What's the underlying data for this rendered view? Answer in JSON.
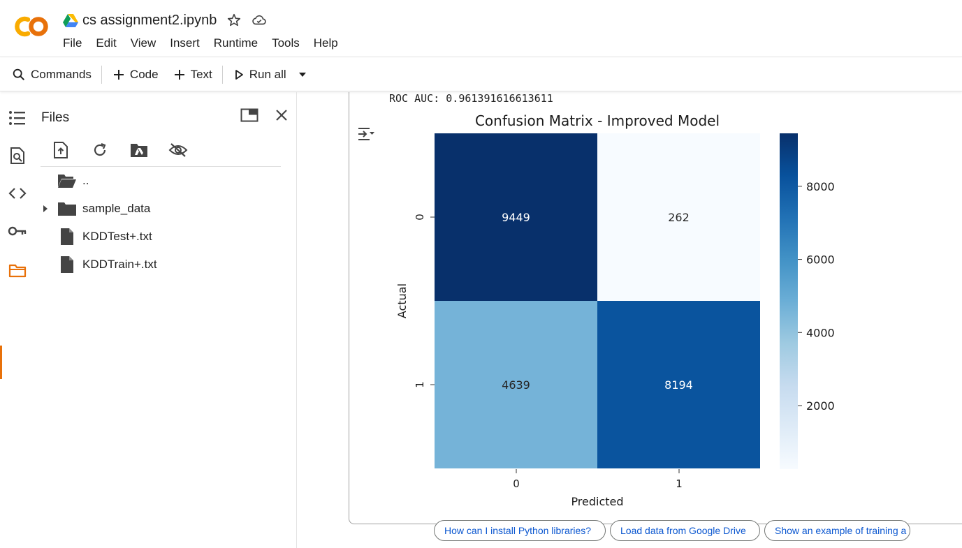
{
  "header": {
    "notebook_title": "cs assignment2.ipynb",
    "menu": [
      "File",
      "Edit",
      "View",
      "Insert",
      "Runtime",
      "Tools",
      "Help"
    ]
  },
  "toolbar": {
    "commands_label": "Commands",
    "code_label": "Code",
    "text_label": "Text",
    "run_all_label": "Run all"
  },
  "files_panel": {
    "title": "Files",
    "items": [
      {
        "name": "..",
        "type": "folder-open"
      },
      {
        "name": "sample_data",
        "type": "folder"
      },
      {
        "name": "KDDTest+.txt",
        "type": "file"
      },
      {
        "name": "KDDTrain+.txt",
        "type": "file"
      }
    ]
  },
  "output": {
    "roc_text": "ROC AUC: 0.961391616613611"
  },
  "chart_data": {
    "type": "heatmap",
    "title": "Confusion Matrix - Improved Model",
    "xlabel": "Predicted",
    "ylabel": "Actual",
    "x_categories": [
      "0",
      "1"
    ],
    "y_categories": [
      "0",
      "1"
    ],
    "values": [
      [
        9449,
        262
      ],
      [
        4639,
        8194
      ]
    ],
    "colormap": "Blues",
    "colorbar_ticks": [
      2000,
      4000,
      6000,
      8000
    ],
    "colorbar_range": [
      262,
      9449
    ],
    "colorbar_tick_labels": [
      "2000",
      "4000",
      "6000",
      "8000"
    ]
  },
  "suggestions": [
    "How can I install Python libraries?",
    "Load data from Google Drive",
    "Show an example of training a"
  ],
  "colors": {
    "accent": "#e8710a",
    "link": "#0b57d0"
  }
}
